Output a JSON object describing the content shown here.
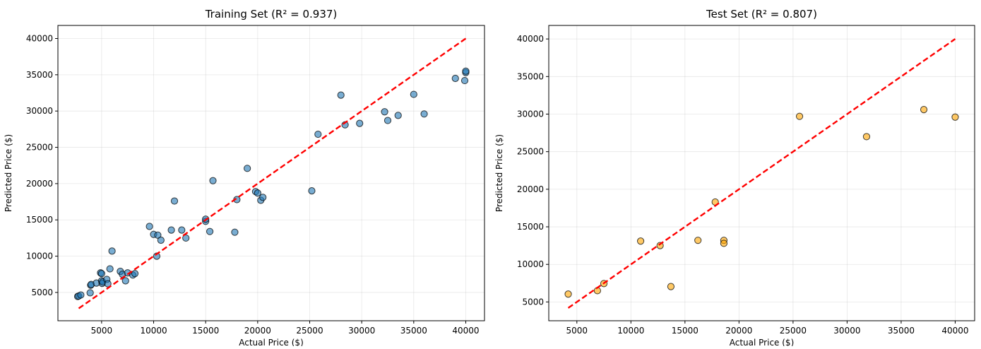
{
  "chart_data": [
    {
      "type": "scatter",
      "title": "Training Set (R² = 0.937)",
      "xlabel": "Actual Price ($)",
      "ylabel": "Predicted Price ($)",
      "xlim": [
        800,
        41800
      ],
      "ylim": [
        1100,
        41800
      ],
      "xticks": [
        5000,
        10000,
        15000,
        20000,
        25000,
        30000,
        35000,
        40000
      ],
      "yticks": [
        5000,
        10000,
        15000,
        20000,
        25000,
        30000,
        35000,
        40000
      ],
      "grid": true,
      "point_color": "#1f77b4",
      "reference_line": {
        "from": [
          2800,
          2800
        ],
        "to": [
          40000,
          40000
        ],
        "color": "#ff0000",
        "style": "dashed"
      },
      "points": [
        [
          2700,
          4450
        ],
        [
          2800,
          4500
        ],
        [
          3000,
          4650
        ],
        [
          3900,
          4950
        ],
        [
          3950,
          6000
        ],
        [
          4000,
          6100
        ],
        [
          4500,
          6300
        ],
        [
          4900,
          7700
        ],
        [
          5000,
          7600
        ],
        [
          5000,
          6600
        ],
        [
          5050,
          6250
        ],
        [
          5100,
          6450
        ],
        [
          5500,
          6800
        ],
        [
          5600,
          6200
        ],
        [
          5800,
          8250
        ],
        [
          6000,
          10700
        ],
        [
          6800,
          7900
        ],
        [
          7000,
          7500
        ],
        [
          7300,
          6600
        ],
        [
          7500,
          7700
        ],
        [
          8000,
          7400
        ],
        [
          8200,
          7600
        ],
        [
          9600,
          14100
        ],
        [
          10000,
          13000
        ],
        [
          10300,
          10000
        ],
        [
          10400,
          12900
        ],
        [
          10700,
          12200
        ],
        [
          11700,
          13600
        ],
        [
          12000,
          17600
        ],
        [
          12700,
          13600
        ],
        [
          13100,
          12500
        ],
        [
          15000,
          14800
        ],
        [
          15000,
          15100
        ],
        [
          15400,
          13400
        ],
        [
          15700,
          20400
        ],
        [
          17800,
          13300
        ],
        [
          18000,
          17800
        ],
        [
          19000,
          22100
        ],
        [
          19800,
          18900
        ],
        [
          20000,
          18700
        ],
        [
          20300,
          17700
        ],
        [
          20500,
          18100
        ],
        [
          25200,
          19000
        ],
        [
          25800,
          26800
        ],
        [
          28000,
          32200
        ],
        [
          28400,
          28100
        ],
        [
          29800,
          28300
        ],
        [
          32200,
          29900
        ],
        [
          32500,
          28700
        ],
        [
          33500,
          29400
        ],
        [
          35000,
          32300
        ],
        [
          36000,
          29600
        ],
        [
          39000,
          34500
        ],
        [
          39900,
          34200
        ],
        [
          40000,
          35300
        ],
        [
          40000,
          35500
        ]
      ]
    },
    {
      "type": "scatter",
      "title": "Test Set (R² = 0.807)",
      "xlabel": "Actual Price ($)",
      "ylabel": "Predicted Price ($)",
      "xlim": [
        2400,
        41800
      ],
      "ylim": [
        2500,
        41800
      ],
      "xticks": [
        5000,
        10000,
        15000,
        20000,
        25000,
        30000,
        35000,
        40000
      ],
      "yticks": [
        5000,
        10000,
        15000,
        20000,
        25000,
        30000,
        35000,
        40000
      ],
      "grid": true,
      "point_color": "#ffa500",
      "reference_line": {
        "from": [
          4200,
          4200
        ],
        "to": [
          40000,
          40000
        ],
        "color": "#ff0000",
        "style": "dashed"
      },
      "points": [
        [
          4200,
          6050
        ],
        [
          6900,
          6500
        ],
        [
          7500,
          7450
        ],
        [
          10900,
          13100
        ],
        [
          12700,
          12500
        ],
        [
          13700,
          7050
        ],
        [
          16200,
          13200
        ],
        [
          17800,
          18300
        ],
        [
          18600,
          13200
        ],
        [
          18600,
          12800
        ],
        [
          25600,
          29700
        ],
        [
          31800,
          27000
        ],
        [
          37100,
          30600
        ],
        [
          40000,
          29600
        ]
      ]
    }
  ]
}
